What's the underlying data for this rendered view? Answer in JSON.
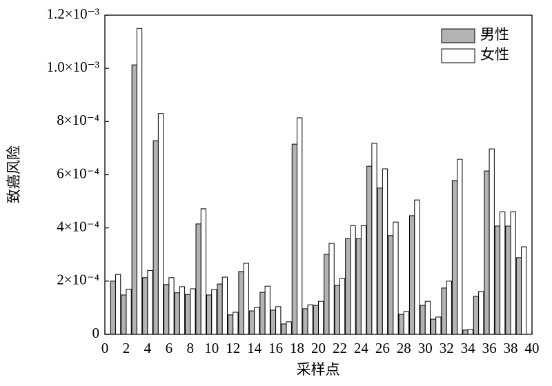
{
  "chart_data": {
    "type": "bar",
    "x_label": "采样点",
    "y_label": "致癌风险",
    "x": [
      1,
      2,
      3,
      4,
      5,
      6,
      7,
      8,
      9,
      10,
      11,
      12,
      13,
      14,
      15,
      16,
      17,
      18,
      19,
      20,
      21,
      22,
      23,
      24,
      25,
      26,
      27,
      28,
      29,
      30,
      31,
      32,
      33,
      34,
      35,
      36,
      37,
      38,
      39
    ],
    "series": [
      {
        "name": "男性",
        "color": "#b3b3b3",
        "values": [
          0.0002,
          0.000148,
          0.001013,
          0.000213,
          0.000728,
          0.000187,
          0.000156,
          0.00015,
          0.000415,
          0.000148,
          0.000189,
          7.3e-05,
          0.000236,
          8.8e-05,
          0.000158,
          9.1e-05,
          3.9e-05,
          0.000715,
          9.6e-05,
          0.000109,
          0.000301,
          0.000184,
          0.00036,
          0.00036,
          0.000632,
          0.00055,
          0.000371,
          7.5e-05,
          0.000446,
          0.000109,
          5.7e-05,
          0.000174,
          0.000578,
          1.6e-05,
          0.000143,
          0.000614,
          0.000407,
          0.000407,
          0.000288
        ]
      },
      {
        "name": "女性",
        "color": "#ffffff",
        "values": [
          0.000225,
          0.00017,
          0.00115,
          0.00024,
          0.00083,
          0.000213,
          0.000179,
          0.000171,
          0.000472,
          0.000168,
          0.000215,
          8.3e-05,
          0.000267,
          0.000101,
          0.000181,
          0.000104,
          4.7e-05,
          0.000814,
          0.000111,
          0.000124,
          0.000342,
          0.00021,
          0.000409,
          0.000409,
          0.000718,
          0.000622,
          0.000422,
          8.6e-05,
          0.000505,
          0.000124,
          6.5e-05,
          0.0002,
          0.000658,
          1.8e-05,
          0.000161,
          0.000697,
          0.000461,
          0.000461,
          0.000329
        ]
      }
    ],
    "xlim": [
      0,
      40
    ],
    "xticks": [
      0,
      2,
      4,
      6,
      8,
      10,
      12,
      14,
      16,
      18,
      20,
      22,
      24,
      26,
      28,
      30,
      32,
      34,
      36,
      38,
      40
    ],
    "ylim": [
      0,
      0.0012
    ],
    "yticks": [
      0,
      {
        "value": 0.0002,
        "label": "2×10⁻⁴"
      },
      {
        "value": 0.0004,
        "label": "4×10⁻⁴"
      },
      {
        "value": 0.0006,
        "label": "6×10⁻⁴"
      },
      {
        "value": 0.0008,
        "label": "8×10⁻⁴"
      },
      {
        "value": 0.001,
        "label": "1.0×10⁻³"
      },
      {
        "value": 0.0012,
        "label": "1.2×10⁻³"
      }
    ],
    "legend": "upper right"
  }
}
